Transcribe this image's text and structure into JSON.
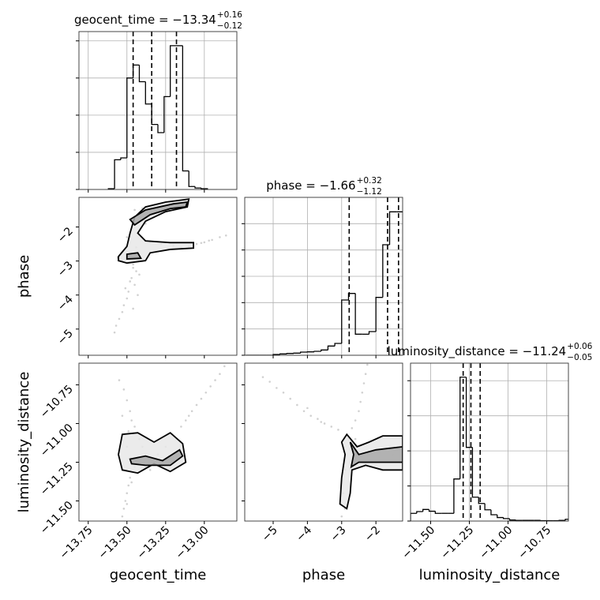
{
  "chart_data": [
    {
      "type": "histogram",
      "title": "geocent_time = −13.34",
      "title_sup": "+0.16",
      "title_sub": "−0.12",
      "xlim": [
        -13.81,
        -12.79
      ],
      "ylim": [
        0,
        4.25
      ],
      "xticks": [
        -13.75,
        -13.5,
        -13.25,
        -13.0
      ],
      "yticks": [
        0,
        1,
        2,
        3,
        4
      ],
      "show_xtick_labels": false,
      "show_ytick_labels": false,
      "grid": true,
      "color": "#000000",
      "bins": [
        -13.62,
        -13.58,
        -13.54,
        -13.5,
        -13.46,
        -13.42,
        -13.38,
        -13.34,
        -13.3,
        -13.26,
        -13.22,
        -13.18,
        -13.14,
        -13.1,
        -13.06,
        -13.02,
        -12.98
      ],
      "values": [
        0.02,
        0.8,
        0.85,
        3.0,
        3.35,
        2.9,
        2.3,
        1.75,
        1.53,
        2.5,
        3.87,
        3.87,
        0.5,
        0.08,
        0.04,
        0.02
      ],
      "quantiles": [
        -13.46,
        -13.34,
        -13.18
      ]
    },
    {
      "type": "histogram",
      "title": "phase = −1.66",
      "title_sup": "+0.32",
      "title_sub": "−1.12",
      "xlim": [
        -5.83,
        -1.22
      ],
      "ylim": [
        0,
        6
      ],
      "xticks": [
        -5,
        -4,
        -3,
        -2
      ],
      "yticks": [
        0,
        1,
        2,
        3,
        4,
        5
      ],
      "show_xtick_labels": false,
      "show_ytick_labels": false,
      "grid": true,
      "color": "#000000",
      "bins": [
        -5.8,
        -5.6,
        -5.4,
        -5.2,
        -5.0,
        -4.8,
        -4.6,
        -4.4,
        -4.2,
        -4.0,
        -3.8,
        -3.6,
        -3.4,
        -3.2,
        -3.0,
        -2.8,
        -2.6,
        -2.4,
        -2.2,
        -2.0,
        -1.8,
        -1.6,
        -1.4,
        -1.2
      ],
      "values": [
        0,
        0,
        0,
        0,
        0.03,
        0.05,
        0.07,
        0.08,
        0.12,
        0.13,
        0.15,
        0.2,
        0.35,
        0.45,
        2.1,
        2.35,
        0.8,
        0.8,
        0.9,
        2.2,
        4.2,
        5.45,
        5.45
      ],
      "quantiles": [
        -2.78,
        -1.66,
        -1.34
      ]
    },
    {
      "type": "histogram",
      "title": "luminosity_distance = −11.24",
      "title_sup": "+0.06",
      "title_sub": "−0.05",
      "xlim": [
        -11.63,
        -10.61
      ],
      "ylim": [
        0,
        4.5
      ],
      "xticks": [
        {
          "value": -11.5,
          "label": "−11.50"
        },
        {
          "value": -11.25,
          "label": "−11.25"
        },
        {
          "value": -11.0,
          "label": "−11.00"
        },
        {
          "value": -10.75,
          "label": "−10.75"
        }
      ],
      "yticks": [
        0,
        1,
        2,
        3,
        4
      ],
      "show_xtick_labels": true,
      "show_ytick_labels": false,
      "grid": true,
      "color": "#000000",
      "xlabel": "luminosity_distance",
      "bins": [
        -11.63,
        -11.59,
        -11.55,
        -11.51,
        -11.47,
        -11.43,
        -11.39,
        -11.35,
        -11.31,
        -11.27,
        -11.23,
        -11.19,
        -11.15,
        -11.11,
        -11.07,
        -11.03,
        -10.99,
        -10.95,
        -10.91,
        -10.87,
        -10.83,
        -10.79,
        -10.75,
        -10.71,
        -10.67,
        -10.63,
        -10.59
      ],
      "values": [
        0.22,
        0.27,
        0.33,
        0.28,
        0.22,
        0.22,
        0.22,
        1.2,
        4.1,
        2.1,
        0.68,
        0.5,
        0.32,
        0.18,
        0.1,
        0.07,
        0.03,
        0.02,
        0.02,
        0.02,
        0.02,
        0.01,
        0.01,
        0.01,
        0.02,
        0.05
      ],
      "quantiles": [
        -11.29,
        -11.24,
        -11.18
      ]
    },
    {
      "type": "scatter",
      "xlim": [
        -13.81,
        -12.79
      ],
      "ylim": [
        -5.77,
        -1.13
      ],
      "xticks": [
        -13.75,
        -13.5,
        -13.25,
        -13.0
      ],
      "yticks": [
        {
          "value": -2,
          "label": "−2"
        },
        {
          "value": -3,
          "label": "−3"
        },
        {
          "value": -4,
          "label": "−4"
        },
        {
          "value": -5,
          "label": "−5"
        }
      ],
      "show_xtick_labels": false,
      "show_ytick_labels": true,
      "grid": false,
      "color": "#000000",
      "ylabel": "phase",
      "contour_fills": [
        "#e8e8e8",
        "#a8a8a8"
      ],
      "x": [
        -13.48,
        -13.46,
        -13.44,
        -13.47,
        -13.45,
        -13.49,
        -13.5,
        -13.52,
        -13.53,
        -13.55,
        -13.57,
        -13.58,
        -13.46,
        -13.42,
        -13.44,
        -13.5,
        -13.53,
        -13.56,
        -13.4,
        -13.48,
        -13.43,
        -13.51,
        -13.46,
        -13.38,
        -13.42,
        -13.35,
        -13.28,
        -13.2,
        -13.15,
        -13.1,
        -13.05,
        -13.0,
        -12.95,
        -12.9,
        -12.86,
        -13.02,
        -12.97,
        -13.45,
        -13.4,
        -13.3,
        -13.22,
        -13.15,
        -13.35,
        -13.42,
        -13.25
      ],
      "y": [
        -2.9,
        -3.1,
        -3.3,
        -3.5,
        -3.7,
        -3.9,
        -4.1,
        -4.3,
        -4.5,
        -4.7,
        -4.9,
        -5.1,
        -3.2,
        -3.4,
        -2.6,
        -2.3,
        -3.0,
        -2.9,
        -3.0,
        -3.6,
        -4.0,
        -3.8,
        -4.4,
        -1.9,
        -2.1,
        -2.45,
        -2.5,
        -2.55,
        -2.6,
        -2.58,
        -2.5,
        -2.45,
        -2.38,
        -2.3,
        -2.25,
        -2.47,
        -2.4,
        -1.5,
        -1.45,
        -1.35,
        -1.3,
        -1.25,
        -1.6,
        -1.7,
        -1.4
      ],
      "contours": [
        {
          "x": [
            -13.555,
            -13.5,
            -13.48,
            -13.45,
            -13.38,
            -13.25,
            -13.1,
            -13.11,
            -13.25,
            -13.38,
            -13.43,
            -13.38,
            -13.22,
            -13.07,
            -13.07,
            -13.22,
            -13.35,
            -13.38,
            -13.5,
            -13.555
          ],
          "y": [
            -2.87,
            -2.57,
            -2.18,
            -1.71,
            -1.41,
            -1.27,
            -1.18,
            -1.41,
            -1.55,
            -1.83,
            -2.18,
            -2.41,
            -2.46,
            -2.46,
            -2.62,
            -2.66,
            -2.76,
            -2.99,
            -3.06,
            -2.99
          ]
        },
        {
          "x": [
            -13.48,
            -13.38,
            -13.2,
            -13.11,
            -13.12,
            -13.22,
            -13.35,
            -13.45
          ],
          "y": [
            -1.78,
            -1.5,
            -1.32,
            -1.27,
            -1.41,
            -1.46,
            -1.64,
            -1.94
          ]
        },
        {
          "x": [
            -13.5,
            -13.43,
            -13.41,
            -13.5
          ],
          "y": [
            -2.8,
            -2.76,
            -2.92,
            -2.94
          ]
        }
      ]
    },
    {
      "type": "scatter",
      "xlim": [
        -13.81,
        -12.79
      ],
      "ylim": [
        -11.63,
        -10.61
      ],
      "xticks": [
        {
          "value": -13.75,
          "label": "−13.75"
        },
        {
          "value": -13.5,
          "label": "−13.50"
        },
        {
          "value": -13.25,
          "label": "−13.25"
        },
        {
          "value": -13.0,
          "label": "−13.00"
        }
      ],
      "yticks": [
        {
          "value": -10.75,
          "label": "−10.75"
        },
        {
          "value": -11.0,
          "label": "−11.00"
        },
        {
          "value": -11.25,
          "label": "−11.25"
        },
        {
          "value": -11.5,
          "label": "−11.50"
        }
      ],
      "show_xtick_labels": true,
      "show_ytick_labels": true,
      "grid": false,
      "color": "#000000",
      "xlabel": "geocent_time",
      "ylabel": "luminosity_distance",
      "contour_fills": [
        "#e8e8e8",
        "#a8a8a8"
      ],
      "x": [
        -13.55,
        -13.52,
        -13.5,
        -13.48,
        -13.47,
        -13.53,
        -13.45,
        -13.49,
        -13.15,
        -13.12,
        -13.08,
        -13.05,
        -13.02,
        -12.99,
        -12.96,
        -12.93,
        -12.9,
        -12.87,
        -13.1,
        -13.4,
        -13.3,
        -13.2,
        -13.45,
        -13.35,
        -13.25,
        -13.18,
        -13.42,
        -13.5,
        -13.48,
        -13.49,
        -13.5,
        -13.51,
        -13.52,
        -13.53,
        -13.5,
        -13.47
      ],
      "y": [
        -10.72,
        -10.78,
        -10.85,
        -10.92,
        -10.98,
        -10.95,
        -11.02,
        -11.05,
        -11.02,
        -10.98,
        -10.92,
        -10.88,
        -10.84,
        -10.8,
        -10.76,
        -10.72,
        -10.68,
        -10.63,
        -10.95,
        -11.15,
        -11.2,
        -11.22,
        -11.28,
        -11.3,
        -11.15,
        -11.1,
        -11.1,
        -11.15,
        -11.35,
        -11.4,
        -11.45,
        -11.5,
        -11.55,
        -11.6,
        -11.52,
        -11.38
      ],
      "contours": [
        {
          "x": [
            -13.53,
            -13.43,
            -13.325,
            -13.22,
            -13.14,
            -13.12,
            -13.22,
            -13.325,
            -13.43,
            -13.53,
            -13.555
          ],
          "y": [
            -11.07,
            -11.06,
            -11.12,
            -11.06,
            -11.13,
            -11.25,
            -11.31,
            -11.26,
            -11.32,
            -11.3,
            -11.2
          ]
        },
        {
          "x": [
            -13.48,
            -13.38,
            -13.27,
            -13.16,
            -13.14,
            -13.22,
            -13.38,
            -13.47
          ],
          "y": [
            -11.23,
            -11.21,
            -11.24,
            -11.17,
            -11.21,
            -11.27,
            -11.27,
            -11.26
          ]
        }
      ]
    },
    {
      "type": "scatter",
      "xlim": [
        -5.83,
        -1.22
      ],
      "ylim": [
        -11.63,
        -10.61
      ],
      "xticks": [
        {
          "value": -5,
          "label": "−5"
        },
        {
          "value": -4,
          "label": "−4"
        },
        {
          "value": -3,
          "label": "−3"
        },
        {
          "value": -2,
          "label": "−2"
        }
      ],
      "yticks": [
        -10.75,
        -11.0,
        -11.25,
        -11.5
      ],
      "show_xtick_labels": true,
      "show_ytick_labels": false,
      "grid": false,
      "color": "#000000",
      "xlabel": "phase",
      "contour_fills": [
        "#e8e8e8",
        "#a8a8a8"
      ],
      "x": [
        -5.3,
        -5.1,
        -4.9,
        -4.7,
        -4.5,
        -4.3,
        -4.1,
        -3.9,
        -3.7,
        -3.5,
        -3.3,
        -3.1,
        -4.0,
        -3.6,
        -2.25,
        -2.3,
        -2.35,
        -2.4,
        -2.45,
        -2.5,
        -2.6,
        -2.7,
        -2.8,
        -2.6,
        -2.3,
        -1.9,
        -1.5,
        -1.3,
        -2.9,
        -2.95,
        -2.9,
        -3.0,
        -2.6,
        -1.6
      ],
      "y": [
        -10.7,
        -10.73,
        -10.77,
        -10.8,
        -10.84,
        -10.88,
        -10.92,
        -10.95,
        -10.97,
        -11.0,
        -11.02,
        -11.04,
        -10.9,
        -10.99,
        -10.62,
        -10.68,
        -10.74,
        -10.8,
        -10.86,
        -10.92,
        -10.98,
        -11.03,
        -11.1,
        -11.15,
        -11.2,
        -11.22,
        -11.2,
        -11.25,
        -11.3,
        -11.45,
        -11.55,
        -11.6,
        -11.1,
        -11.15
      ],
      "contours": [
        {
          "x": [
            -2.85,
            -2.55,
            -2.2,
            -1.8,
            -1.22,
            -1.22,
            -1.8,
            -2.3,
            -2.7,
            -2.75,
            -2.85,
            -3.05,
            -3.0,
            -2.9,
            -3.0
          ],
          "y": [
            -11.07,
            -11.15,
            -11.12,
            -11.08,
            -11.08,
            -11.3,
            -11.3,
            -11.27,
            -11.3,
            -11.45,
            -11.55,
            -11.52,
            -11.35,
            -11.2,
            -11.12
          ]
        },
        {
          "x": [
            -2.75,
            -2.5,
            -2.0,
            -1.22,
            -1.22,
            -2.0,
            -2.5,
            -2.72,
            -2.65
          ],
          "y": [
            -11.12,
            -11.2,
            -11.17,
            -11.15,
            -11.25,
            -11.25,
            -11.25,
            -11.28,
            -11.2
          ]
        }
      ]
    }
  ]
}
